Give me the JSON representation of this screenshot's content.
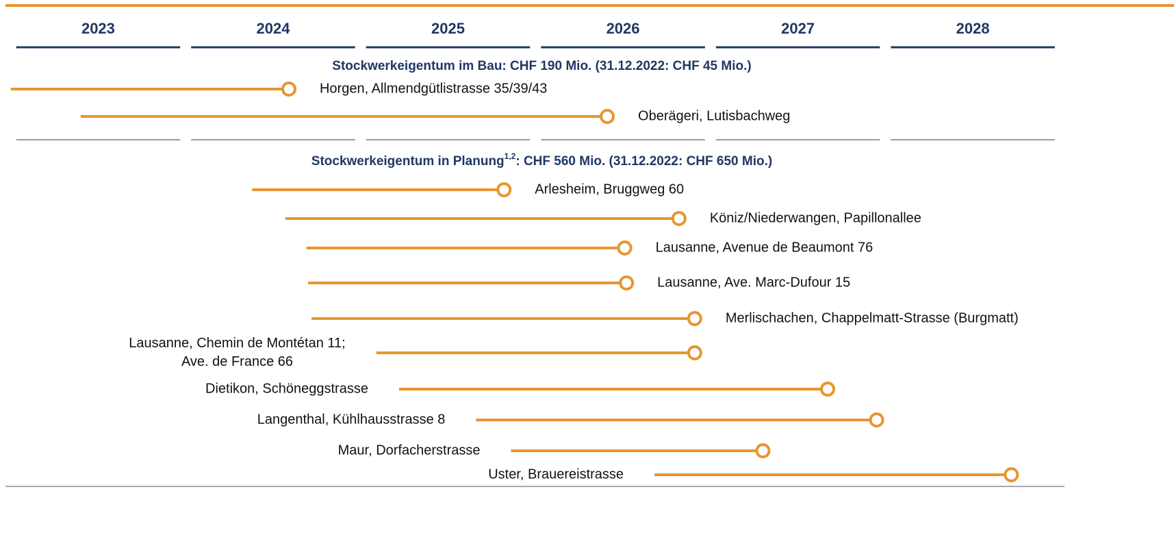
{
  "chart_data": {
    "type": "timeline",
    "xlim": [
      2022.97,
      2029.65
    ],
    "xticks": [
      {
        "value": 2023.5,
        "label": "2023"
      },
      {
        "value": 2024.5,
        "label": "2024"
      },
      {
        "value": 2025.5,
        "label": "2025"
      },
      {
        "value": 2026.5,
        "label": "2026"
      },
      {
        "value": 2027.5,
        "label": "2027"
      },
      {
        "value": 2028.5,
        "label": "2028"
      }
    ],
    "color": "#e8952f",
    "sections": [
      {
        "title": "Stockwerkeigentum im Bau: CHF 190 Mio. (31.12.2022: CHF 45 Mio.)",
        "items": [
          {
            "label": [
              "Horgen, Allmendgütlistrasse 35/39/43"
            ],
            "start": 2023.0,
            "end": 2024.59,
            "label_side": "right"
          },
          {
            "label": [
              "Oberägeri, Lutisbachweg"
            ],
            "start": 2023.4,
            "end": 2026.41,
            "label_side": "right"
          }
        ]
      },
      {
        "title": "Stockwerkeigentum in Planung",
        "title_sup": "1,2",
        "title_rest": ": CHF 560 Mio. (31.12.2022: CHF 650 Mio.)",
        "items": [
          {
            "label": [
              "Arlesheim, Bruggweg 60"
            ],
            "start": 2024.38,
            "end": 2025.82,
            "label_side": "right"
          },
          {
            "label": [
              "Köniz/Niederwangen, Papillonallee"
            ],
            "start": 2024.57,
            "end": 2026.82,
            "label_side": "right"
          },
          {
            "label": [
              "Lausanne, Avenue de Beaumont 76"
            ],
            "start": 2024.69,
            "end": 2026.51,
            "label_side": "right"
          },
          {
            "label": [
              "Lausanne, Ave. Marc-Dufour 15"
            ],
            "start": 2024.7,
            "end": 2026.52,
            "label_side": "right"
          },
          {
            "label": [
              "Merlischachen, Chappelmatt-Strasse (Burgmatt)"
            ],
            "start": 2024.72,
            "end": 2026.91,
            "label_side": "right"
          },
          {
            "label": [
              "Lausanne, Chemin de Montétan 11;",
              "Ave. de France 66"
            ],
            "start": 2025.09,
            "end": 2026.91,
            "label_side": "left"
          },
          {
            "label": [
              "Dietikon, Schöneggstrasse"
            ],
            "start": 2025.22,
            "end": 2027.67,
            "label_side": "left"
          },
          {
            "label": [
              "Langenthal, Kühlhausstrasse 8"
            ],
            "start": 2025.66,
            "end": 2027.95,
            "label_side": "left"
          },
          {
            "label": [
              "Maur, Dorfacherstrasse"
            ],
            "start": 2025.86,
            "end": 2027.3,
            "label_side": "left"
          },
          {
            "label": [
              "Uster, Brauereistrasse"
            ],
            "start": 2026.68,
            "end": 2028.72,
            "label_side": "left"
          }
        ]
      }
    ]
  }
}
